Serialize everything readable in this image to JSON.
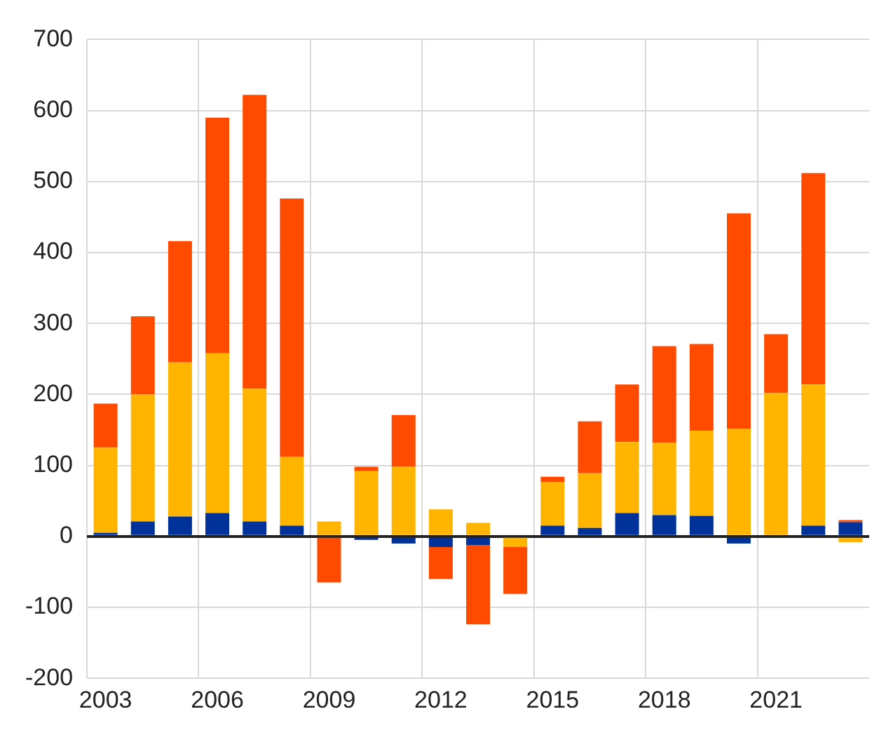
{
  "chart_data": {
    "type": "bar",
    "stacked": true,
    "categories": [
      "2003",
      null,
      null,
      "2006",
      null,
      null,
      "2009",
      null,
      null,
      "2012",
      null,
      null,
      "2015",
      null,
      null,
      "2018",
      null,
      null,
      "2021",
      null,
      null
    ],
    "series": [
      {
        "color": "#003299",
        "values": [
          5,
          21,
          28,
          33,
          21,
          15,
          0,
          -5,
          -10,
          -15,
          -12,
          0,
          15,
          12,
          33,
          30,
          29,
          -10,
          2,
          15,
          20
        ]
      },
      {
        "color": "#ffb400",
        "values": [
          120,
          179,
          217,
          225,
          187,
          97,
          21,
          92,
          98,
          38,
          19,
          -15,
          62,
          77,
          100,
          102,
          120,
          152,
          200,
          199,
          -8
        ]
      },
      {
        "color": "#ff4b00",
        "values": [
          62,
          110,
          171,
          332,
          414,
          364,
          -65,
          6,
          73,
          -45,
          -112,
          -66,
          7,
          73,
          81,
          136,
          122,
          303,
          83,
          298,
          3
        ]
      }
    ],
    "ylim": [
      -200,
      700
    ],
    "yticks": [
      -200,
      -100,
      0,
      100,
      200,
      300,
      400,
      500,
      600,
      700
    ],
    "grid": true,
    "legend": false
  }
}
